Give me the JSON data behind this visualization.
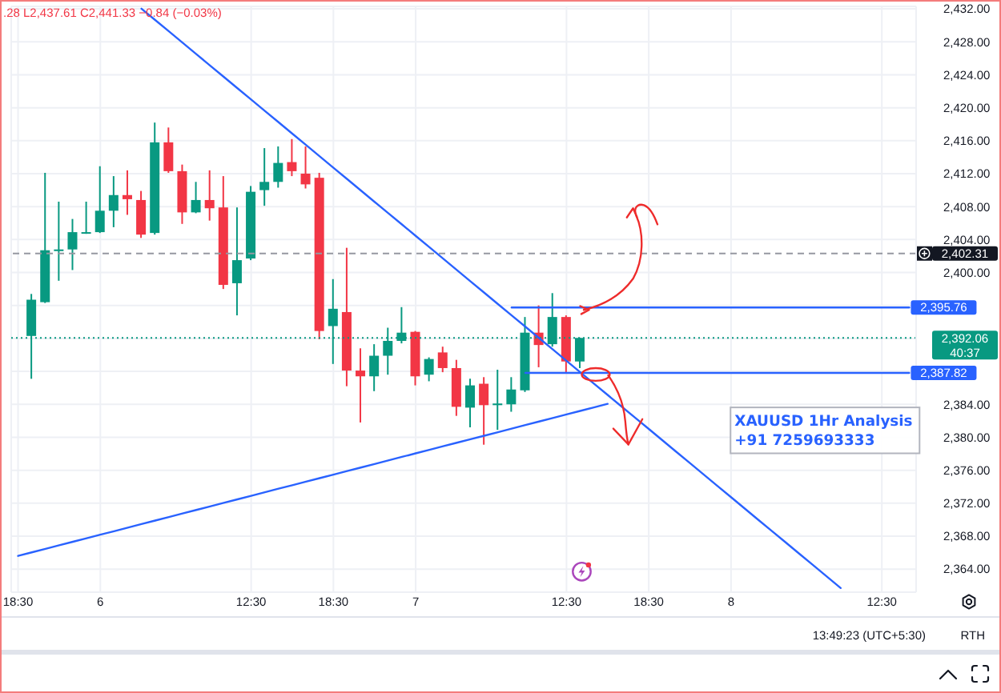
{
  "chart_data": {
    "type": "candlestick",
    "categories": [
      "18:30",
      null,
      null,
      null,
      null,
      null,
      "6",
      null,
      null,
      null,
      null,
      null,
      null,
      null,
      null,
      null,
      null,
      "12:30",
      null,
      null,
      null,
      null,
      null,
      "18:30",
      null,
      null,
      null,
      null,
      null,
      "7",
      null,
      null,
      null,
      null,
      null,
      null,
      null,
      null,
      null,
      null,
      "12:30",
      null,
      null,
      null,
      null,
      null,
      "18:30",
      null,
      null,
      null,
      null,
      null,
      "8",
      null,
      null,
      null,
      null,
      null,
      null,
      null,
      null,
      null,
      null,
      "12:30",
      null,
      null
    ],
    "ohlc": [
      null,
      [
        2392.3,
        2397.4,
        2387.1,
        2396.7
      ],
      [
        2396.4,
        2412.1,
        2396.3,
        2402.7
      ],
      [
        2402.6,
        2408.6,
        2399.0,
        2402.8
      ],
      [
        2402.8,
        2406.5,
        2400.3,
        2404.9
      ],
      [
        2404.8,
        2408.6,
        2404.7,
        2404.9
      ],
      [
        2404.9,
        2412.9,
        2404.8,
        2407.5
      ],
      [
        2407.5,
        2411.7,
        2405.5,
        2409.4
      ],
      [
        2409.4,
        2412.4,
        2407.0,
        2408.9
      ],
      [
        2408.8,
        2409.9,
        2404.2,
        2404.6
      ],
      [
        2404.8,
        2418.2,
        2404.6,
        2415.8
      ],
      [
        2415.8,
        2417.6,
        2412.1,
        2412.3
      ],
      [
        2412.3,
        2413.1,
        2405.9,
        2407.3
      ],
      [
        2407.3,
        2411.0,
        2407.2,
        2408.8
      ],
      [
        2408.8,
        2412.4,
        2406.3,
        2407.8
      ],
      [
        2407.9,
        2411.7,
        2398.0,
        2398.5
      ],
      [
        2398.7,
        2407.9,
        2394.8,
        2401.5
      ],
      [
        2401.7,
        2410.5,
        2401.5,
        2409.8
      ],
      [
        2410.0,
        2415.1,
        2408.1,
        2411.0
      ],
      [
        2411.0,
        2415.3,
        2410.3,
        2413.3
      ],
      [
        2413.4,
        2416.2,
        2411.7,
        2412.3
      ],
      [
        2412.0,
        2415.3,
        2410.2,
        2410.7
      ],
      [
        2411.5,
        2412.1,
        2391.9,
        2392.9
      ],
      [
        2393.5,
        2399.2,
        2388.9,
        2395.6
      ],
      [
        2395.2,
        2403.0,
        2386.2,
        2388.1
      ],
      [
        2388.1,
        2390.8,
        2381.8,
        2387.4
      ],
      [
        2387.4,
        2391.3,
        2385.6,
        2389.9
      ],
      [
        2389.9,
        2393.3,
        2387.6,
        2391.7
      ],
      [
        2391.7,
        2395.8,
        2391.4,
        2392.7
      ],
      [
        2392.8,
        2392.9,
        2386.3,
        2387.4
      ],
      [
        2387.6,
        2389.7,
        2386.8,
        2389.5
      ],
      [
        2390.3,
        2391.0,
        2387.9,
        2388.4
      ],
      [
        2388.4,
        2389.4,
        2382.6,
        2383.7
      ],
      [
        2383.6,
        2387.1,
        2381.2,
        2386.3
      ],
      [
        2386.5,
        2387.3,
        2379.1,
        2383.9
      ],
      [
        2383.9,
        2388.2,
        2380.9,
        2384.1
      ],
      [
        2384.0,
        2387.3,
        2383.1,
        2385.8
      ],
      [
        2385.7,
        2394.6,
        2385.5,
        2392.7
      ],
      [
        2392.7,
        2396.0,
        2388.5,
        2391.2
      ],
      [
        2391.3,
        2397.5,
        2391.0,
        2394.6
      ],
      [
        2394.6,
        2394.8,
        2387.9,
        2389.2
      ],
      [
        2389.2,
        2392.1,
        2388.4,
        2392.06
      ],
      null,
      null,
      null,
      null,
      null,
      null,
      null,
      null,
      null,
      null,
      null,
      null,
      null,
      null,
      null,
      null,
      null,
      null,
      null,
      null,
      null,
      null,
      null,
      null
    ],
    "colors": [
      null,
      "#089981",
      "#089981",
      "#089981",
      "#089981",
      "#089981",
      "#089981",
      "#089981",
      "#f23645",
      "#f23645",
      "#089981",
      "#f23645",
      "#f23645",
      "#089981",
      "#f23645",
      "#f23645",
      "#089981",
      "#089981",
      "#089981",
      "#089981",
      "#f23645",
      "#f23645",
      "#f23645",
      "#089981",
      "#f23645",
      "#f23645",
      "#089981",
      "#089981",
      "#089981",
      "#f23645",
      "#089981",
      "#f23645",
      "#f23645",
      "#089981",
      "#f23645",
      "#089981",
      "#089981",
      "#089981",
      "#f23645",
      "#089981",
      "#f23645",
      "#089981",
      null,
      null,
      null,
      null,
      null,
      null,
      null,
      null,
      null,
      null,
      null,
      null,
      null,
      null,
      null,
      null,
      null,
      null,
      null,
      null,
      null,
      null,
      null,
      null
    ],
    "ylim": [
      2361.2,
      2432.3
    ],
    "yticks": [
      {
        "value": 2364,
        "label": "2,364.00"
      },
      {
        "value": 2368,
        "label": "2,368.00"
      },
      {
        "value": 2372,
        "label": "2,372.00"
      },
      {
        "value": 2376,
        "label": "2,376.00"
      },
      {
        "value": 2380,
        "label": "2,380.00"
      },
      {
        "value": 2384,
        "label": "2,384.00"
      },
      {
        "value": 2388,
        "label": null
      },
      {
        "value": 2392,
        "label": null
      },
      {
        "value": 2396,
        "label": null
      },
      {
        "value": 2400,
        "label": "2,400.00"
      },
      {
        "value": 2404,
        "label": "2,404.00"
      },
      {
        "value": 2408,
        "label": "2,408.00"
      },
      {
        "value": 2412,
        "label": "2,412.00"
      },
      {
        "value": 2416,
        "label": "2,416.00"
      },
      {
        "value": 2420,
        "label": "2,420.00"
      },
      {
        "value": 2424,
        "label": "2,424.00"
      },
      {
        "value": 2428,
        "label": "2,428.00"
      },
      {
        "value": 2432,
        "label": "2,432.00"
      }
    ],
    "grid": true,
    "series": [
      {
        "type": "line",
        "color": "#2962ff",
        "values": [
          null,
          null,
          null,
          null,
          null,
          null,
          null,
          null,
          null,
          2432.02,
          2430.65,
          2429.27,
          2427.89,
          2426.51,
          2425.13,
          2423.75,
          2422.37,
          2420.99,
          2419.61,
          2418.24,
          2416.86,
          2415.48,
          2414.1,
          2412.72,
          2411.34,
          2409.96,
          2408.58,
          2407.2,
          2405.83,
          2404.45,
          2403.07,
          2401.69,
          2400.31,
          2398.93,
          2397.55,
          2396.17,
          2394.79,
          2393.42,
          2392.04,
          2390.66,
          2389.28,
          2387.9,
          2386.52,
          2385.14,
          2383.76,
          2382.38,
          2381.01,
          2379.63,
          2378.25,
          2376.87,
          2375.49,
          2374.11,
          2372.73,
          2371.35,
          2369.97,
          2368.6,
          2367.22,
          2365.84,
          2364.46,
          2363.08,
          2361.7,
          null,
          null,
          null,
          null,
          null
        ]
      },
      {
        "type": "line",
        "color": "#2962ff",
        "values": [
          2365.6,
          2366.03,
          2366.46,
          2366.89,
          2367.32,
          2367.75,
          2368.18,
          2368.6,
          2369.03,
          2369.46,
          2369.89,
          2370.32,
          2370.75,
          2371.18,
          2371.61,
          2372.04,
          2372.47,
          2372.9,
          2373.33,
          2373.76,
          2374.18,
          2374.61,
          2375.04,
          2375.47,
          2375.9,
          2376.33,
          2376.76,
          2377.19,
          2377.62,
          2378.05,
          2378.48,
          2378.91,
          2379.34,
          2379.76,
          2380.19,
          2380.62,
          2381.05,
          2381.48,
          2381.91,
          2382.34,
          2382.77,
          2383.2,
          2383.63,
          2384.06,
          null,
          null,
          null,
          null,
          null,
          null,
          null,
          null,
          null,
          null,
          null,
          null,
          null,
          null,
          null,
          null,
          null,
          null,
          null,
          null,
          null,
          null
        ]
      },
      {
        "type": "line",
        "color": "#2962ff",
        "values": [
          null,
          null,
          null,
          null,
          null,
          null,
          null,
          null,
          null,
          null,
          null,
          null,
          null,
          null,
          null,
          null,
          null,
          null,
          null,
          null,
          null,
          null,
          null,
          null,
          null,
          null,
          null,
          null,
          null,
          null,
          null,
          null,
          null,
          null,
          null,
          null,
          2395.76,
          2395.76,
          2395.76,
          2395.76,
          2395.76,
          2395.76,
          2395.76,
          2395.76,
          2395.76,
          2395.76,
          2395.76,
          2395.76,
          2395.76,
          2395.76,
          2395.76,
          2395.76,
          2395.76,
          2395.76,
          2395.76,
          2395.76,
          2395.76,
          2395.76,
          2395.76,
          2395.76,
          2395.76,
          2395.76,
          2395.76,
          2395.76,
          2395.76,
          2395.76
        ],
        "value_labels": [
          null,
          null,
          null,
          null,
          null,
          null,
          null,
          null,
          null,
          null,
          null,
          null,
          null,
          null,
          null,
          null,
          null,
          null,
          null,
          null,
          null,
          null,
          null,
          null,
          null,
          null,
          null,
          null,
          null,
          null,
          null,
          null,
          null,
          null,
          null,
          null,
          null,
          null,
          null,
          null,
          null,
          null,
          null,
          null,
          null,
          null,
          null,
          null,
          null,
          null,
          null,
          null,
          null,
          null,
          null,
          null,
          null,
          null,
          null,
          null,
          null,
          null,
          null,
          null,
          null,
          "2,395.76"
        ]
      },
      {
        "type": "line",
        "color": "#2962ff",
        "values": [
          null,
          null,
          null,
          null,
          null,
          null,
          null,
          null,
          null,
          null,
          null,
          null,
          null,
          null,
          null,
          null,
          null,
          null,
          null,
          null,
          null,
          null,
          null,
          null,
          null,
          null,
          null,
          null,
          null,
          null,
          null,
          null,
          null,
          null,
          null,
          null,
          null,
          2387.82,
          2387.82,
          2387.82,
          2387.82,
          2387.82,
          2387.82,
          2387.82,
          2387.82,
          2387.82,
          2387.82,
          2387.82,
          2387.82,
          2387.82,
          2387.82,
          2387.82,
          2387.82,
          2387.82,
          2387.82,
          2387.82,
          2387.82,
          2387.82,
          2387.82,
          2387.82,
          2387.82,
          2387.82,
          2387.82,
          2387.82,
          2387.82,
          2387.82
        ],
        "value_labels": [
          null,
          null,
          null,
          null,
          null,
          null,
          null,
          null,
          null,
          null,
          null,
          null,
          null,
          null,
          null,
          null,
          null,
          null,
          null,
          null,
          null,
          null,
          null,
          null,
          null,
          null,
          null,
          null,
          null,
          null,
          null,
          null,
          null,
          null,
          null,
          null,
          null,
          null,
          null,
          null,
          null,
          null,
          null,
          null,
          null,
          null,
          null,
          null,
          null,
          null,
          null,
          null,
          null,
          null,
          null,
          null,
          null,
          null,
          null,
          null,
          null,
          null,
          null,
          null,
          null,
          "2,387.82"
        ]
      }
    ],
    "ref_lines": [
      {
        "axis": "y",
        "value": 2402.31,
        "label": "2,402.31",
        "color": "#9598a1",
        "line_style": "dashed"
      },
      {
        "axis": "y",
        "value": 2392.06,
        "label": "2,392.06\n40:37",
        "color": "#089981",
        "line_style": "dotted"
      }
    ],
    "annotations": [
      ".28 L2,437.61 C2,441.33 −0.84 (−0.03%)",
      "XAUUSD 1Hr Analysis\n+91 7259693333",
      "13:49:23 (UTC+5:30)",
      "RTH"
    ]
  }
}
